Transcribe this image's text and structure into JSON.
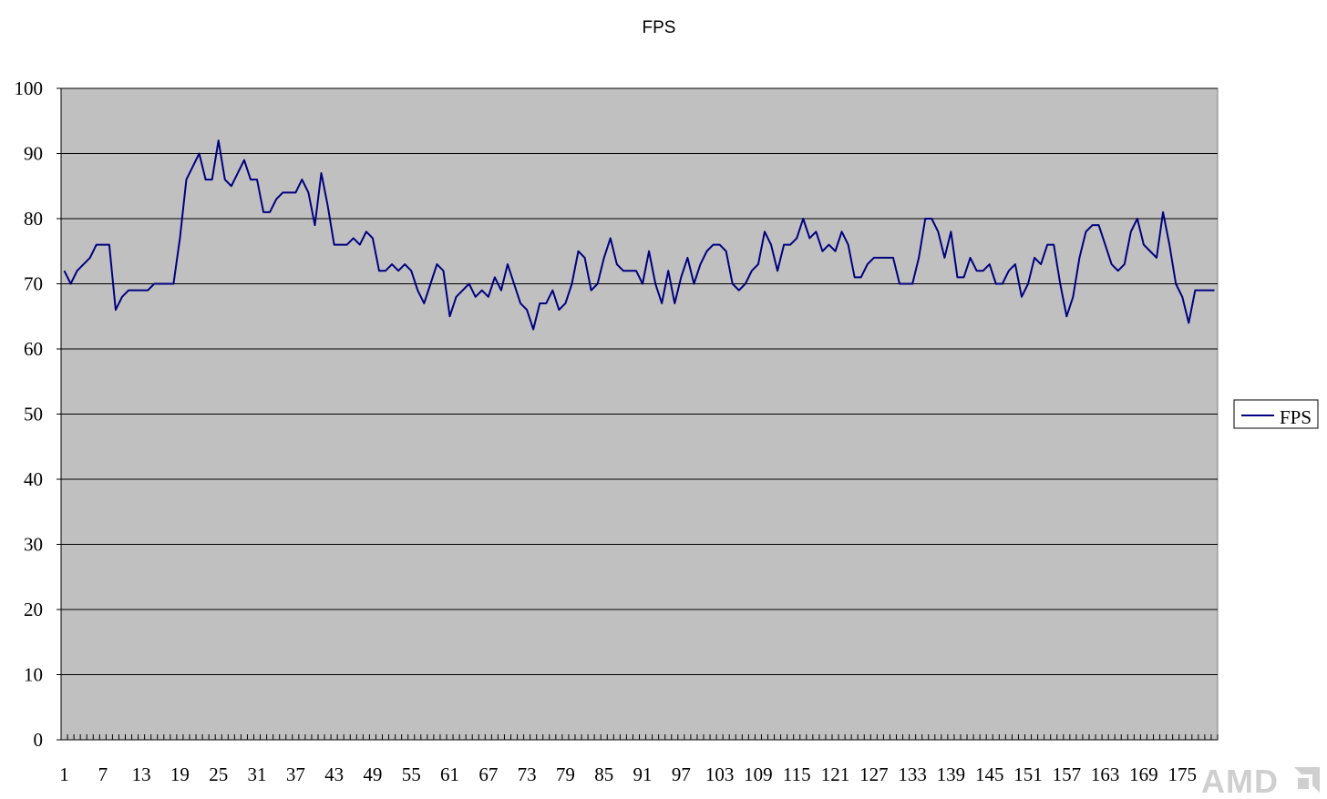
{
  "chart_data": {
    "type": "line",
    "title": "FPS",
    "xlabel": "",
    "ylabel": "",
    "ylim": [
      0,
      100
    ],
    "yticks": [
      0,
      10,
      20,
      30,
      40,
      50,
      60,
      70,
      80,
      90,
      100
    ],
    "xlim": [
      1,
      180
    ],
    "xtick_labels": [
      "1",
      "7",
      "13",
      "19",
      "25",
      "31",
      "37",
      "43",
      "49",
      "55",
      "61",
      "67",
      "73",
      "79",
      "85",
      "91",
      "97",
      "103",
      "109",
      "115",
      "121",
      "127",
      "133",
      "139",
      "145",
      "151",
      "157",
      "163",
      "169",
      "175"
    ],
    "grid": true,
    "legend_position": "right",
    "colors": {
      "line": "#000080",
      "plot_background": "#c0c0c0",
      "grid": "#000000"
    },
    "series": [
      {
        "name": "FPS",
        "values": [
          72,
          70,
          72,
          73,
          74,
          76,
          76,
          76,
          66,
          68,
          69,
          69,
          69,
          69,
          70,
          70,
          70,
          70,
          77,
          86,
          88,
          90,
          86,
          86,
          92,
          86,
          85,
          87,
          89,
          86,
          86,
          81,
          81,
          83,
          84,
          84,
          84,
          86,
          84,
          79,
          87,
          82,
          76,
          76,
          76,
          77,
          76,
          78,
          77,
          72,
          72,
          73,
          72,
          73,
          72,
          69,
          67,
          70,
          73,
          72,
          65,
          68,
          69,
          70,
          68,
          69,
          68,
          71,
          69,
          73,
          70,
          67,
          66,
          63,
          67,
          67,
          69,
          66,
          67,
          70,
          75,
          74,
          69,
          70,
          74,
          77,
          73,
          72,
          72,
          72,
          70,
          75,
          70,
          67,
          72,
          67,
          71,
          74,
          70,
          73,
          75,
          76,
          76,
          75,
          70,
          69,
          70,
          72,
          73,
          78,
          76,
          72,
          76,
          76,
          77,
          80,
          77,
          78,
          75,
          76,
          75,
          78,
          76,
          71,
          71,
          73,
          74,
          74,
          74,
          74,
          70,
          70,
          70,
          74,
          80,
          80,
          78,
          74,
          78,
          71,
          71,
          74,
          72,
          72,
          73,
          70,
          70,
          72,
          73,
          68,
          70,
          74,
          73,
          76,
          76,
          70,
          65,
          68,
          74,
          78,
          79,
          79,
          76,
          73,
          72,
          73,
          78,
          80,
          76,
          75,
          74,
          81,
          76,
          70,
          68,
          64,
          69,
          69,
          69,
          69
        ]
      }
    ]
  },
  "legend": {
    "label": "FPS"
  },
  "watermark": {
    "text": "AMD"
  }
}
